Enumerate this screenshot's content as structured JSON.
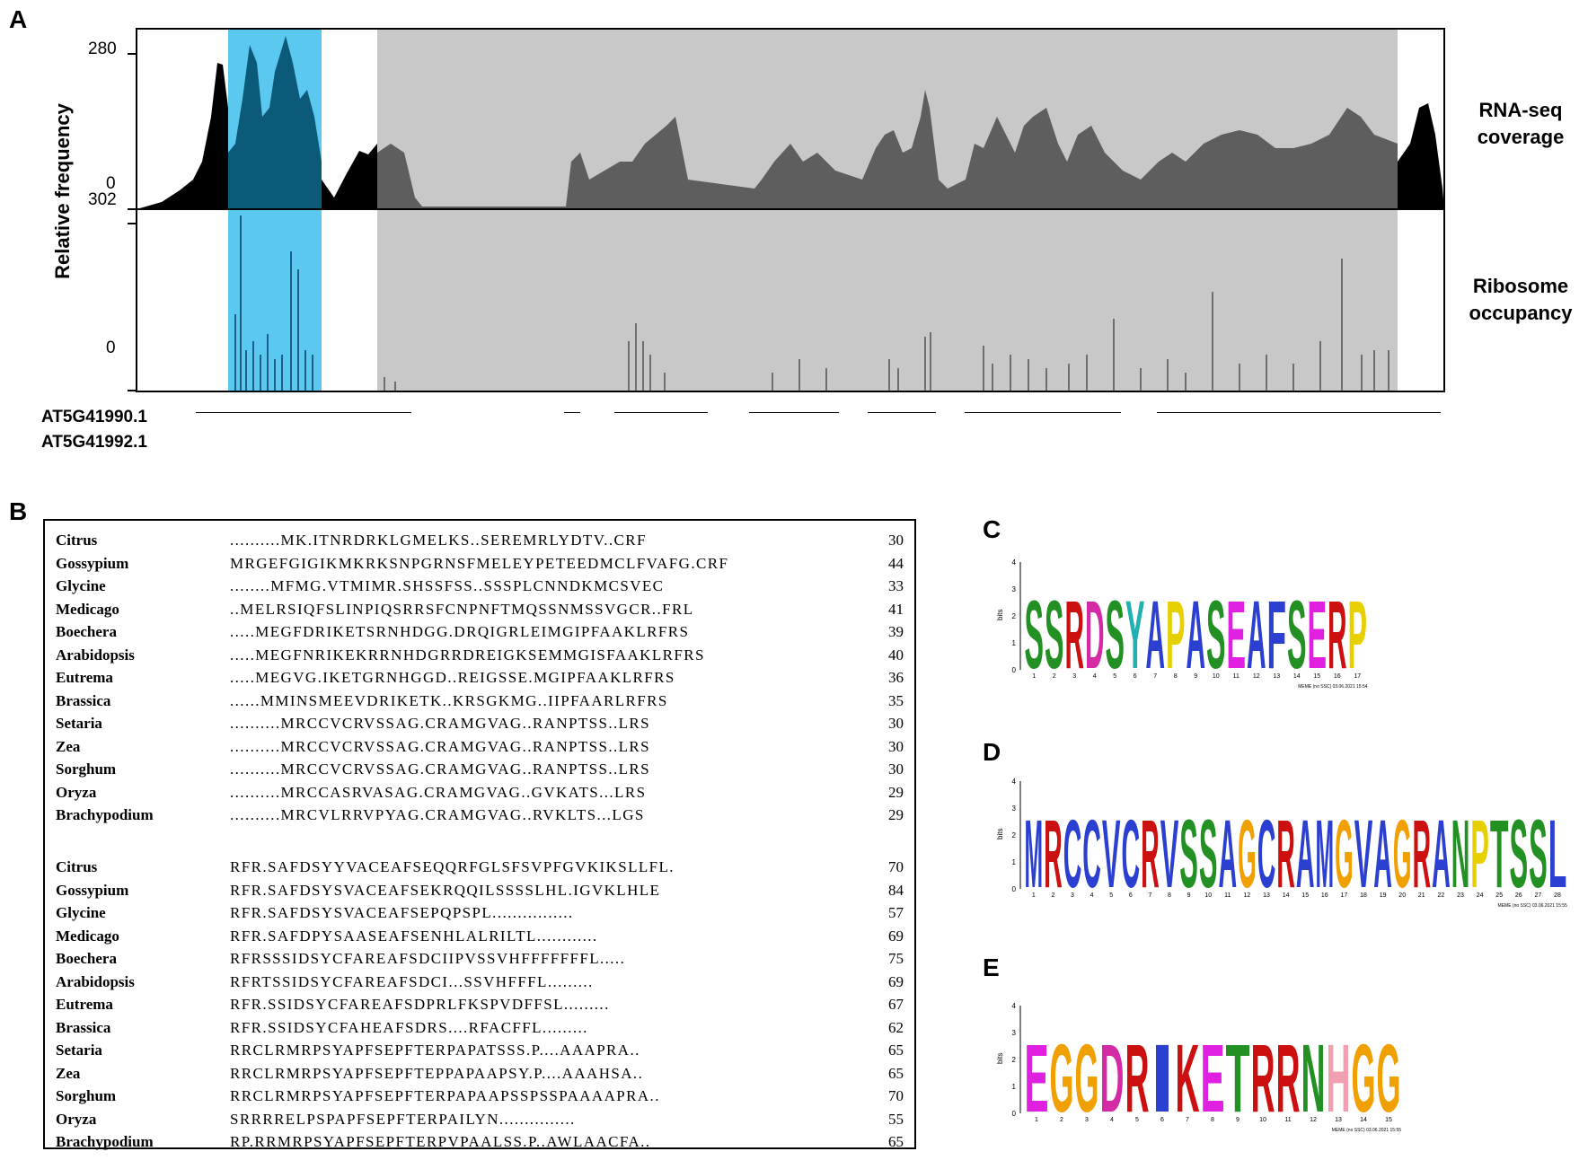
{
  "colors": {
    "highlight_blue": "#5bc8f0",
    "gray_region": "#c8c8c8",
    "coverage_black": "#000000",
    "coverage_gray": "#5e5e5e",
    "align_cyan": "#7fe6ea",
    "align_pink": "#e98bc4",
    "align_navy": "#141a50"
  },
  "panel_a": {
    "letter": "A",
    "y_axis_label": "Relative frequency",
    "rna_max": "280",
    "rna_min": "0",
    "ribo_max": "302",
    "ribo_min": "0",
    "rna_label_line1": "RNA-seq",
    "rna_label_line2": "coverage",
    "ribo_label_line1": "Ribosome",
    "ribo_label_line2": "occupancy",
    "gene1": "AT5G41990.1",
    "gene2": "AT5G41992.1"
  },
  "panel_b": {
    "letter": "B",
    "block1": [
      {
        "species": "Citrus",
        "seq": "..........MK.ITNRDRKLGMELKS..SEREMRLYDTV..CRF",
        "num": "30"
      },
      {
        "species": "Gossypium",
        "seq": "MRGEFGIGIKMKRKSNPGRNSFMELEYPETEEDMCLFVAFG.CRF",
        "num": "44"
      },
      {
        "species": "Glycine",
        "seq": "........MFMG.VTMIMR.SHSSFSS..SSSPLCNNDKMCSVEC",
        "num": "33"
      },
      {
        "species": "Medicago",
        "seq": "..MELRSIQFSLINPIQSRRSFCNPNFTMQSSNMSSVGCR..FRL",
        "num": "41"
      },
      {
        "species": "Boechera",
        "seq": ".....MEGFDRIKETSRNHDGG.DRQIGRLEIMGIPFAAKLRFRS",
        "num": "39"
      },
      {
        "species": "Arabidopsis",
        "seq": ".....MEGFNRIKEKRRNHDGRRDREIGKSEMMGISFAAKLRFRS",
        "num": "40"
      },
      {
        "species": "Eutrema",
        "seq": ".....MEGVG.IKETGRNHGGD..REIGSSE.MGIPFAAKLRFRS",
        "num": "36"
      },
      {
        "species": "Brassica",
        "seq": "......MMINSMEEVDRIKETK..KRSGKMG..IIPFAARLRFRS",
        "num": "35"
      },
      {
        "species": "Setaria",
        "seq": "..........MRCCVCRVSSAG.CRAMGVAG..RANPTSS..LRS",
        "num": "30"
      },
      {
        "species": "Zea",
        "seq": "..........MRCCVCRVSSAG.CRAMGVAG..RANPTSS..LRS",
        "num": "30"
      },
      {
        "species": "Sorghum",
        "seq": "..........MRCCVCRVSSAG.CRAMGVAG..RANPTSS..LRS",
        "num": "30"
      },
      {
        "species": "Oryza",
        "seq": "..........MRCCASRVASAG.CRAMGVAG..GVKATS...LRS",
        "num": "29"
      },
      {
        "species": "Brachypodium",
        "seq": "..........MRCVLRRVPYAG.CRAMGVAG..RVKLTS...LGS",
        "num": "29"
      }
    ],
    "block2": [
      {
        "species": "Citrus",
        "seq": "RFR.SAFDSYYVACEAFSEQQRFGLSFSVPFGVKIKSLLFL.",
        "num": "70"
      },
      {
        "species": "Gossypium",
        "seq": "RFR.SAFDSYSVACEAFSEKRQQILSSSSLHL.IGVKLHLE",
        "num": "84"
      },
      {
        "species": "Glycine",
        "seq": "RFR.SAFDSYSVACEAFSEPQPSPL................",
        "num": "57"
      },
      {
        "species": "Medicago",
        "seq": "RFR.SAFDPYSAASEAFSENHLALRILTL............",
        "num": "69"
      },
      {
        "species": "Boechera",
        "seq": "RFRSSSIDSYCFAREAFSDCIIPVSSVHFFFFFFFL.....",
        "num": "75"
      },
      {
        "species": "Arabidopsis",
        "seq": "RFRTSSIDSYCFAREAFSDCI...SSVHFFFL.........",
        "num": "69"
      },
      {
        "species": "Eutrema",
        "seq": "RFR.SSIDSYCFAREAFSDPRLFKSPVDFFSL.........",
        "num": "67"
      },
      {
        "species": "Brassica",
        "seq": "RFR.SSIDSYCFAHEAFSDRS....RFACFFL.........",
        "num": "62"
      },
      {
        "species": "Setaria",
        "seq": "RRCLRMRPSYAPFSEPFTERPAPATSSS.P....AAAPRA..",
        "num": "65"
      },
      {
        "species": "Zea",
        "seq": "RRCLRMRPSYAPFSEPFTEPPAPAAPSY.P....AAAHSA..",
        "num": "65"
      },
      {
        "species": "Sorghum",
        "seq": "RRCLRMRPSYAPFSEPFTERPAPAAPSSPSSPAAAAPRA..",
        "num": "70"
      },
      {
        "species": "Oryza",
        "seq": "SRRRRELPSPAPFSEPFTERPAILYN...............",
        "num": "55"
      },
      {
        "species": "Brachypodium",
        "seq": "RP.RRMRPSYAPFSEPFTERPVPAALSS.P..AWLAACFA..",
        "num": "65"
      }
    ]
  },
  "panel_c": {
    "letter": "C",
    "y_label": "bits",
    "y_ticks": [
      "0",
      "1",
      "2",
      "3",
      "4"
    ],
    "top_letters": [
      "S",
      "S",
      "R",
      "D",
      "S",
      "Y",
      "A",
      "P",
      "A",
      "S",
      "E",
      "A",
      "F",
      "S",
      "E",
      "R",
      "P"
    ],
    "positions": [
      "1",
      "2",
      "3",
      "4",
      "5",
      "6",
      "7",
      "8",
      "9",
      "10",
      "11",
      "12",
      "13",
      "14",
      "15",
      "16",
      "17"
    ],
    "footer": "MEME (no SSC) 03.06.2021 15:54"
  },
  "panel_d": {
    "letter": "D",
    "y_label": "bits",
    "y_ticks": [
      "0",
      "1",
      "2",
      "3",
      "4"
    ],
    "top_letters": [
      "M",
      "R",
      "C",
      "C",
      "V",
      "C",
      "R",
      "V",
      "S",
      "S",
      "A",
      "G",
      "C",
      "R",
      "A",
      "M",
      "G",
      "V",
      "A",
      "G",
      "R",
      "A",
      "N",
      "P",
      "T",
      "S",
      "S",
      "L"
    ],
    "positions": [
      "1",
      "2",
      "3",
      "4",
      "5",
      "6",
      "7",
      "8",
      "9",
      "10",
      "11",
      "12",
      "13",
      "14",
      "15",
      "16",
      "17",
      "18",
      "19",
      "20",
      "21",
      "22",
      "23",
      "24",
      "25",
      "26",
      "27",
      "28"
    ],
    "footer": "MEME (no SSC) 03.06.2021 15:55"
  },
  "panel_e": {
    "letter": "E",
    "y_label": "bits",
    "y_ticks": [
      "0",
      "1",
      "2",
      "3",
      "4"
    ],
    "top_letters": [
      "E",
      "G",
      "G",
      "D",
      "R",
      "I",
      "K",
      "E",
      "T",
      "R",
      "R",
      "N",
      "H",
      "G",
      "G"
    ],
    "positions": [
      "1",
      "2",
      "3",
      "4",
      "5",
      "6",
      "7",
      "8",
      "9",
      "10",
      "11",
      "12",
      "13",
      "14",
      "15"
    ],
    "footer": "MEME (no SSC) 03.06.2021 15:55"
  }
}
